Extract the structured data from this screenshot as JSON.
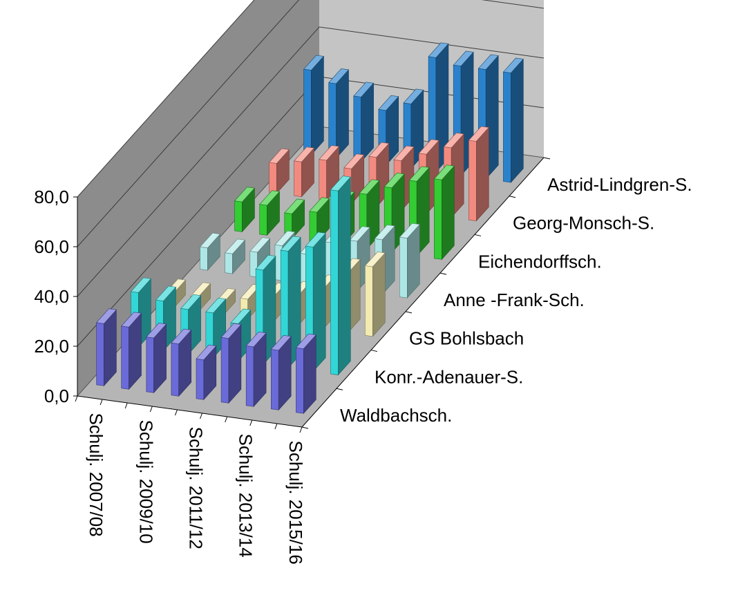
{
  "chart_data": {
    "type": "bar",
    "subtype": "3d-column",
    "categories": [
      "Schulj. 2007/08",
      "",
      "Schulj. 2009/10",
      "",
      "Schulj. 2011/12",
      "",
      "Schulj. 2013/14",
      "",
      "Schulj. 2015/16"
    ],
    "x_tick_labels": [
      "Schulj. 2007/08",
      "Schulj. 2009/10",
      "Schulj. 2011/12",
      "Schulj. 2013/14",
      "Schulj. 2015/16"
    ],
    "ylim": [
      0,
      80
    ],
    "y_ticks": [
      0,
      20,
      40,
      60,
      80
    ],
    "y_tick_labels": [
      "0,0",
      "20,0",
      "40,0",
      "60,0",
      "80,0"
    ],
    "series": [
      {
        "name": "Waldbachsch.",
        "color": "#6a6ad8",
        "values": [
          25,
          25,
          22,
          21,
          16,
          26,
          24,
          24,
          26
        ]
      },
      {
        "name": "Konr.-Adenauer-S.",
        "color": "#33d6d6",
        "values": [
          22,
          20,
          18,
          18,
          15,
          38,
          47,
          50,
          74
        ]
      },
      {
        "name": "GS Bohlsbach",
        "color": "#f2eab0",
        "values": [
          6,
          6,
          5,
          8,
          10,
          12,
          16,
          24,
          28
        ]
      },
      {
        "name": "Anne -Frank-Sch.",
        "color": "#aee6e6",
        "values": [
          9,
          8,
          10,
          14,
          12,
          18,
          20,
          22,
          24
        ]
      },
      {
        "name": "Eichendorffsch.",
        "color": "#33cc33",
        "values": [
          12,
          12,
          10,
          12,
          16,
          22,
          26,
          30,
          32
        ]
      },
      {
        "name": "Georg-Monsch-S.",
        "color": "#f28a80",
        "values": [
          12,
          14,
          16,
          14,
          20,
          20,
          24,
          28,
          32
        ]
      },
      {
        "name": "Astrid-Lindgren-S.",
        "color": "#2a82cc",
        "values": [
          34,
          30,
          26,
          22,
          26,
          46,
          44,
          44,
          44
        ]
      }
    ],
    "grid": true,
    "legend": "none"
  }
}
